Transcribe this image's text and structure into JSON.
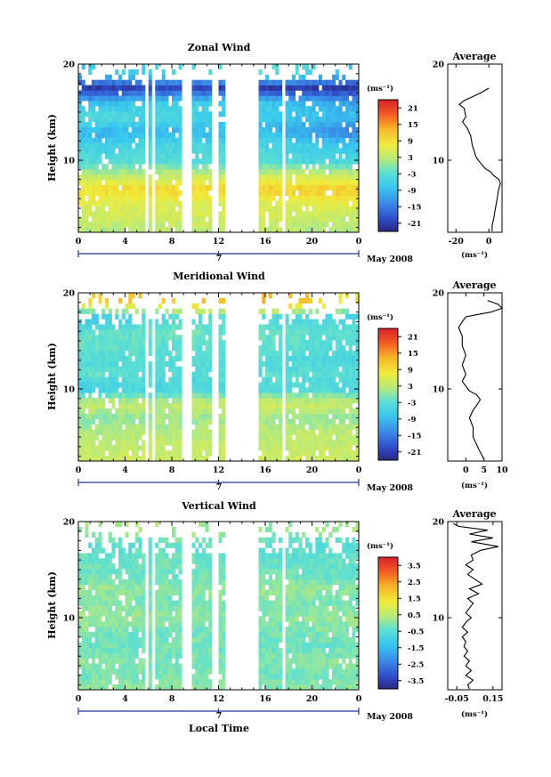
{
  "figure": {
    "local_time_label": "Local Time"
  },
  "chart_data": [
    {
      "type": "heatmap",
      "title": "Zonal Wind",
      "ylabel": "Height (km)",
      "y_ticks": [
        "20",
        "10"
      ],
      "ylim": [
        2.5,
        20
      ],
      "x_ticks": [
        "0",
        "4",
        "8",
        "12",
        "16",
        "20",
        "0"
      ],
      "xlim": [
        0,
        24
      ],
      "date_day": "7",
      "date_label": "May 2008",
      "colorbar": {
        "unit": "(ms⁻¹)",
        "ticks": [
          "21",
          "15",
          "9",
          "3",
          "-3",
          "-9",
          "-15",
          "-21"
        ],
        "range": [
          -24,
          24
        ]
      },
      "data_gaps_hours": [
        [
          5.8,
          6.0
        ],
        [
          6.4,
          6.6
        ],
        [
          8.9,
          9.3
        ],
        [
          9.4,
          9.6
        ],
        [
          11.4,
          11.9
        ],
        [
          12.5,
          15.5
        ],
        [
          16.5,
          16.6
        ],
        [
          17.3,
          17.7
        ]
      ],
      "data_rows": [
        {
          "h": 19.0,
          "v": [
            -8,
            -6,
            -2,
            -9
          ]
        },
        {
          "h": 17.5,
          "v": [
            -22,
            -20,
            -22,
            -22
          ]
        },
        {
          "h": 16.0,
          "v": [
            -10,
            -6,
            -7,
            -12
          ]
        },
        {
          "h": 14.5,
          "v": [
            -3,
            -5,
            -7,
            -9
          ]
        },
        {
          "h": 13.0,
          "v": [
            -10,
            -9,
            -9,
            -15
          ]
        },
        {
          "h": 11.5,
          "v": [
            -6,
            -5,
            -5,
            -8
          ]
        },
        {
          "h": 10.0,
          "v": [
            -4,
            -4,
            -4,
            -6
          ]
        },
        {
          "h": 8.5,
          "v": [
            2,
            3,
            4,
            4
          ]
        },
        {
          "h": 7.0,
          "v": [
            9,
            10,
            11,
            11
          ]
        },
        {
          "h": 5.5,
          "v": [
            6,
            6,
            6,
            7
          ]
        },
        {
          "h": 4.0,
          "v": [
            4,
            5,
            5,
            3
          ]
        },
        {
          "h": 3.0,
          "v": [
            2,
            3,
            3,
            2
          ]
        }
      ],
      "average_profile": {
        "title": "Average",
        "xlabel": "(ms⁻¹)",
        "x_ticks": [
          "-20",
          "0"
        ],
        "xlim": [
          -25,
          8
        ],
        "ylim": [
          2.5,
          20
        ],
        "y_ticks": [
          "20",
          "10"
        ],
        "points": [
          [
            0,
            17.5
          ],
          [
            -5,
            17.0
          ],
          [
            -10,
            16.6
          ],
          [
            -15,
            16.2
          ],
          [
            -18,
            15.8
          ],
          [
            -15,
            15.4
          ],
          [
            -14,
            14.5
          ],
          [
            -16,
            14.0
          ],
          [
            -13,
            13.3
          ],
          [
            -11,
            12.5
          ],
          [
            -10,
            11.5
          ],
          [
            -9,
            11.0
          ],
          [
            -8,
            10.4
          ],
          [
            -6,
            9.9
          ],
          [
            -4,
            9.5
          ],
          [
            -2,
            9.1
          ],
          [
            1,
            8.8
          ],
          [
            3,
            8.4
          ],
          [
            6,
            8.0
          ],
          [
            7,
            7.6
          ],
          [
            6,
            7.0
          ],
          [
            5,
            6.0
          ],
          [
            4,
            5.0
          ],
          [
            3,
            4.0
          ],
          [
            2,
            3.2
          ],
          [
            2,
            2.6
          ]
        ]
      }
    },
    {
      "type": "heatmap",
      "title": "Meridional Wind",
      "ylabel": "Height (km)",
      "y_ticks": [
        "20",
        "10"
      ],
      "ylim": [
        2.5,
        20
      ],
      "x_ticks": [
        "0",
        "4",
        "8",
        "12",
        "16",
        "20",
        "0"
      ],
      "xlim": [
        0,
        24
      ],
      "date_day": "7",
      "date_label": "May 2008",
      "colorbar": {
        "unit": "(ms⁻¹)",
        "ticks": [
          "21",
          "15",
          "9",
          "3",
          "-3",
          "-9",
          "-15",
          "-21"
        ],
        "range": [
          -24,
          24
        ]
      },
      "data_gaps_hours": [
        [
          5.8,
          6.0
        ],
        [
          6.4,
          6.6
        ],
        [
          8.9,
          9.3
        ],
        [
          9.4,
          9.6
        ],
        [
          11.4,
          11.9
        ],
        [
          12.5,
          15.5
        ],
        [
          16.5,
          16.6
        ],
        [
          17.3,
          17.7
        ]
      ],
      "data_rows": [
        {
          "h": 19.0,
          "v": [
            10,
            12,
            14,
            8
          ]
        },
        {
          "h": 17.5,
          "v": [
            -8,
            -4,
            -4,
            -6
          ]
        },
        {
          "h": 16.0,
          "v": [
            -3,
            -1,
            -2,
            -3
          ]
        },
        {
          "h": 14.5,
          "v": [
            -2,
            -3,
            -2,
            -4
          ]
        },
        {
          "h": 13.0,
          "v": [
            -4,
            -3,
            -4,
            -5
          ]
        },
        {
          "h": 11.5,
          "v": [
            -2,
            -4,
            -3,
            -3
          ]
        },
        {
          "h": 10.0,
          "v": [
            -6,
            -5,
            -4,
            -5
          ]
        },
        {
          "h": 8.5,
          "v": [
            4,
            3,
            5,
            4
          ]
        },
        {
          "h": 7.0,
          "v": [
            0,
            1,
            1,
            0
          ]
        },
        {
          "h": 5.5,
          "v": [
            2,
            2,
            3,
            3
          ]
        },
        {
          "h": 4.0,
          "v": [
            3,
            4,
            3,
            4
          ]
        },
        {
          "h": 3.0,
          "v": [
            4,
            4,
            5,
            4
          ]
        }
      ],
      "average_profile": {
        "title": "Average",
        "xlabel": "(ms⁻¹)",
        "x_ticks": [
          "0",
          "5",
          "10"
        ],
        "xlim": [
          -5,
          10
        ],
        "ylim": [
          2.5,
          20
        ],
        "y_ticks": [
          "20",
          "10"
        ],
        "points": [
          [
            6,
            19.2
          ],
          [
            9,
            18.8
          ],
          [
            10,
            18.4
          ],
          [
            7,
            18.0
          ],
          [
            4,
            17.8
          ],
          [
            0,
            17.5
          ],
          [
            -1,
            17.0
          ],
          [
            -2,
            16.4
          ],
          [
            -1,
            15.5
          ],
          [
            -1,
            14.5
          ],
          [
            0,
            13.5
          ],
          [
            -1,
            12.5
          ],
          [
            0,
            11.5
          ],
          [
            -1,
            10.8
          ],
          [
            0,
            10.3
          ],
          [
            1,
            9.8
          ],
          [
            3,
            9.4
          ],
          [
            4,
            8.9
          ],
          [
            3,
            8.3
          ],
          [
            2,
            7.8
          ],
          [
            1,
            7.0
          ],
          [
            2,
            6.0
          ],
          [
            2,
            5.0
          ],
          [
            3,
            4.2
          ],
          [
            4,
            3.4
          ],
          [
            5,
            2.7
          ]
        ]
      }
    },
    {
      "type": "heatmap",
      "title": "Vertical Wind",
      "ylabel": "Height (km)",
      "y_ticks": [
        "20",
        "10"
      ],
      "ylim": [
        2.5,
        20
      ],
      "x_ticks": [
        "0",
        "4",
        "8",
        "12",
        "16",
        "20",
        "0"
      ],
      "xlim": [
        0,
        24
      ],
      "date_day": "7",
      "date_label": "May 2008",
      "colorbar": {
        "unit": "(ms⁻¹)",
        "ticks": [
          "3.5",
          "2.5",
          "1.5",
          "0.5",
          "-0.5",
          "-1.5",
          "-2.5",
          "-3.5"
        ],
        "range": [
          -4,
          4
        ]
      },
      "data_gaps_hours": [
        [
          5.8,
          6.0
        ],
        [
          6.4,
          6.6
        ],
        [
          8.9,
          9.3
        ],
        [
          9.4,
          9.6
        ],
        [
          11.4,
          11.9
        ],
        [
          12.5,
          15.5
        ],
        [
          16.5,
          16.6
        ],
        [
          17.3,
          17.7
        ]
      ],
      "data_rows": [
        {
          "h": 19.0,
          "v": [
            0.2,
            0.3,
            0.1,
            0.2
          ]
        },
        {
          "h": 17.5,
          "v": [
            -0.6,
            -0.4,
            -0.5,
            -0.6
          ]
        },
        {
          "h": 16.0,
          "v": [
            -0.3,
            -0.2,
            -0.4,
            -0.3
          ]
        },
        {
          "h": 14.5,
          "v": [
            -0.2,
            -0.3,
            -0.2,
            -0.4
          ]
        },
        {
          "h": 13.0,
          "v": [
            0.1,
            0.0,
            0.2,
            0.0
          ]
        },
        {
          "h": 11.5,
          "v": [
            0.0,
            -0.2,
            -0.1,
            -0.2
          ]
        },
        {
          "h": 10.0,
          "v": [
            0.2,
            0.1,
            0.0,
            0.2
          ]
        },
        {
          "h": 8.5,
          "v": [
            -0.1,
            -0.3,
            -0.2,
            -0.1
          ]
        },
        {
          "h": 7.0,
          "v": [
            -0.3,
            -0.1,
            -0.2,
            -0.3
          ]
        },
        {
          "h": 5.5,
          "v": [
            0.0,
            -0.2,
            -0.1,
            0.1
          ]
        },
        {
          "h": 4.0,
          "v": [
            -0.2,
            -0.1,
            -0.3,
            -0.2
          ]
        },
        {
          "h": 3.0,
          "v": [
            0.1,
            0.0,
            -0.1,
            0.0
          ]
        }
      ],
      "average_profile": {
        "title": "Average",
        "xlabel": "(ms⁻¹)",
        "x_ticks": [
          "-0.05",
          "0.15"
        ],
        "xlim": [
          -0.1,
          0.2
        ],
        "ylim": [
          2.5,
          20
        ],
        "y_ticks": [
          "20",
          "10"
        ],
        "points": [
          [
            -0.07,
            19.8
          ],
          [
            -0.04,
            19.5
          ],
          [
            0.12,
            19.1
          ],
          [
            0.02,
            18.7
          ],
          [
            0.15,
            18.3
          ],
          [
            0.03,
            17.9
          ],
          [
            0.18,
            17.4
          ],
          [
            0.08,
            17.0
          ],
          [
            0.03,
            16.5
          ],
          [
            0.04,
            16.0
          ],
          [
            0.0,
            15.5
          ],
          [
            0.04,
            15.0
          ],
          [
            0.01,
            14.5
          ],
          [
            0.05,
            14.0
          ],
          [
            0.09,
            13.5
          ],
          [
            0.02,
            13.0
          ],
          [
            0.07,
            12.5
          ],
          [
            0.01,
            12.0
          ],
          [
            0.04,
            11.5
          ],
          [
            0.02,
            11.0
          ],
          [
            0.0,
            10.5
          ],
          [
            0.03,
            10.0
          ],
          [
            0.0,
            9.5
          ],
          [
            -0.02,
            9.0
          ],
          [
            0.01,
            8.5
          ],
          [
            -0.02,
            8.0
          ],
          [
            0.0,
            7.5
          ],
          [
            -0.01,
            7.0
          ],
          [
            0.01,
            6.5
          ],
          [
            -0.01,
            6.0
          ],
          [
            0.02,
            5.5
          ],
          [
            0.0,
            5.0
          ],
          [
            0.03,
            4.5
          ],
          [
            0.0,
            4.0
          ],
          [
            0.04,
            3.5
          ],
          [
            0.01,
            3.0
          ],
          [
            0.02,
            2.6
          ]
        ]
      }
    }
  ]
}
